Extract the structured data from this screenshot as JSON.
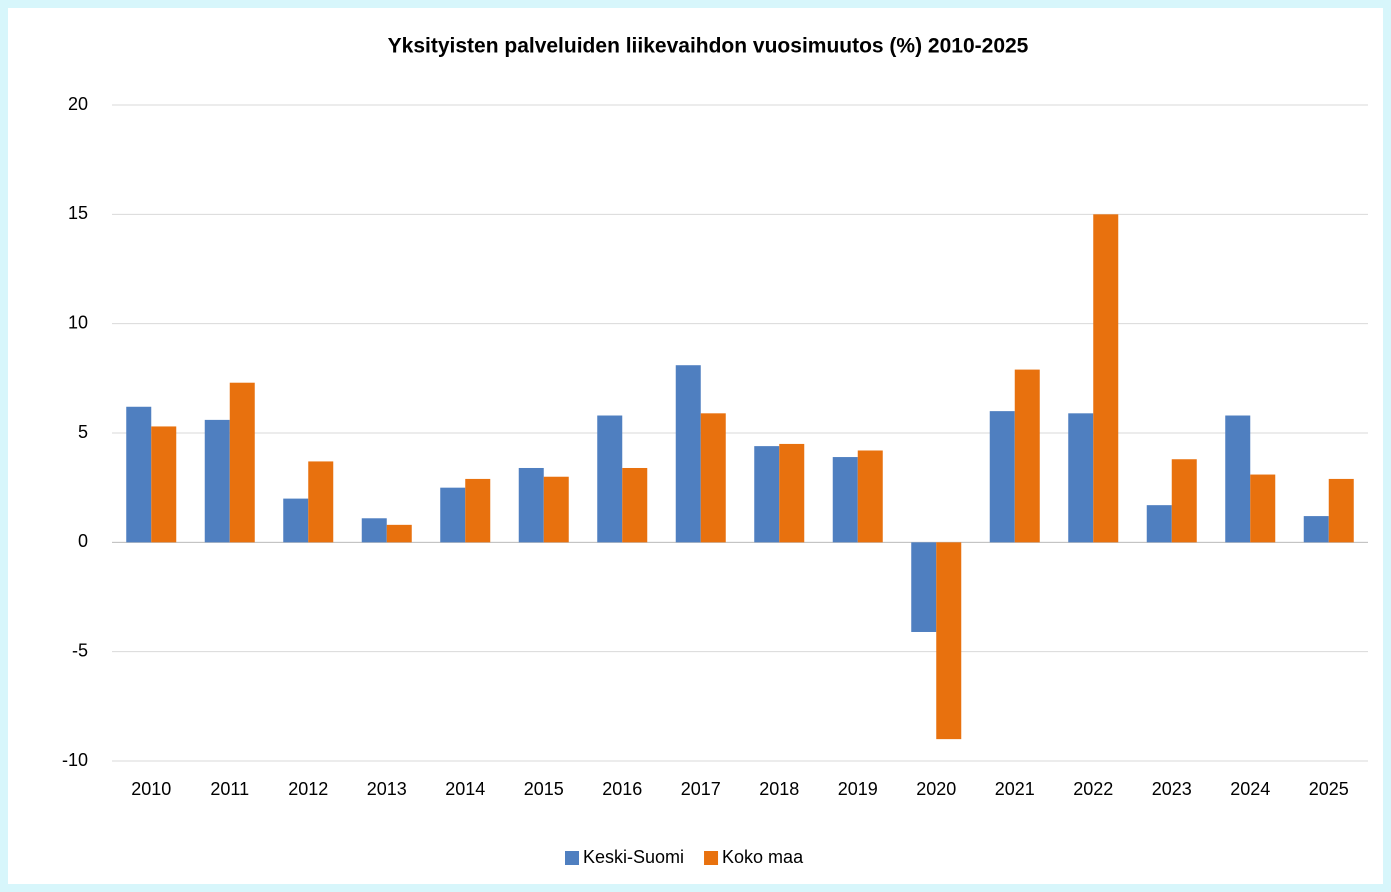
{
  "chart_data": {
    "type": "bar",
    "title": "Yksityisten palveluiden liikevaihdon vuosimuutos (%) 2010-2025",
    "categories": [
      "2010",
      "2011",
      "2012",
      "2013",
      "2014",
      "2015",
      "2016",
      "2017",
      "2018",
      "2019",
      "2020",
      "2021",
      "2022",
      "2023",
      "2024",
      "2025"
    ],
    "series": [
      {
        "name": "Keski-Suomi",
        "color": "#4f7fc0",
        "values": [
          6.2,
          5.6,
          2.0,
          1.1,
          2.5,
          3.4,
          5.8,
          8.1,
          4.4,
          3.9,
          -4.1,
          6.0,
          5.9,
          1.7,
          5.8,
          1.2
        ]
      },
      {
        "name": "Koko maa",
        "color": "#e8710e",
        "values": [
          5.3,
          7.3,
          3.7,
          0.8,
          2.9,
          3.0,
          3.4,
          5.9,
          4.5,
          4.2,
          -9.0,
          7.9,
          15.0,
          3.8,
          3.1,
          2.9
        ]
      }
    ],
    "ylim": [
      -10,
      20
    ],
    "yticks": [
      -10,
      -5,
      0,
      5,
      10,
      15,
      20
    ],
    "grid": true,
    "legend": "bottom"
  }
}
